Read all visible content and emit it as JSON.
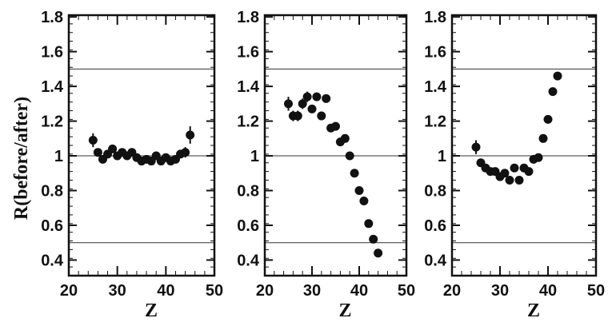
{
  "ylabel": "R(before/after)",
  "xlabel": "Z",
  "chart_data": [
    {
      "type": "scatter",
      "xlabel": "Z",
      "ylabel": "R(before/after)",
      "xlim": [
        20,
        50
      ],
      "ylim": [
        0.31,
        1.81
      ],
      "xticks": [
        20,
        30,
        40,
        50
      ],
      "xtick_labels": [
        "20",
        "30",
        "40",
        "50"
      ],
      "yticks": [
        0.4,
        0.6,
        0.8,
        1.0,
        1.2,
        1.4,
        1.6,
        1.8
      ],
      "ytick_labels": [
        "0.4",
        "0.6",
        "0.8",
        "1",
        "1.2",
        "1.4",
        "1.6",
        "1.8"
      ],
      "reference_lines": [
        0.5,
        1.0,
        1.5
      ],
      "series": [
        {
          "x": [
            25,
            26,
            27,
            28,
            29,
            30,
            31,
            32,
            33,
            34,
            35,
            36,
            37,
            38,
            39,
            40,
            41,
            42,
            43,
            44,
            45
          ],
          "y": [
            1.09,
            1.02,
            0.98,
            1.01,
            1.04,
            1.0,
            1.02,
            1.0,
            1.02,
            0.99,
            0.97,
            0.98,
            0.97,
            1.0,
            0.97,
            0.99,
            0.97,
            0.98,
            1.01,
            1.02,
            1.12
          ],
          "err": [
            0.04,
            0.02,
            0.02,
            0.02,
            0.02,
            0.02,
            0.02,
            0.02,
            0.02,
            0.02,
            0.02,
            0.02,
            0.02,
            0.02,
            0.02,
            0.02,
            0.02,
            0.02,
            0.02,
            0.03,
            0.05
          ]
        }
      ]
    },
    {
      "type": "scatter",
      "xlabel": "Z",
      "xlim": [
        20,
        50
      ],
      "ylim": [
        0.31,
        1.81
      ],
      "xticks": [
        20,
        30,
        40,
        50
      ],
      "xtick_labels": [
        "20",
        "30",
        "40",
        "50"
      ],
      "yticks": [
        0.4,
        0.6,
        0.8,
        1.0,
        1.2,
        1.4,
        1.6,
        1.8
      ],
      "ytick_labels": [
        "0.4",
        "0.6",
        "0.8",
        "1",
        "1.2",
        "1.4",
        "1.6",
        "1.8"
      ],
      "reference_lines": [
        0.5,
        1.0,
        1.5
      ],
      "series": [
        {
          "x": [
            25,
            26,
            27,
            28,
            29,
            30,
            31,
            32,
            33,
            34,
            35,
            36,
            37,
            38,
            39,
            40,
            41,
            42,
            43,
            44
          ],
          "y": [
            1.3,
            1.23,
            1.23,
            1.3,
            1.34,
            1.27,
            1.34,
            1.23,
            1.33,
            1.16,
            1.17,
            1.08,
            1.1,
            1.0,
            0.9,
            0.8,
            0.74,
            0.61,
            0.52,
            0.44
          ],
          "err": [
            0.04,
            0.03,
            0.03,
            0.03,
            0.03,
            0.02,
            0.02,
            0.02,
            0.02,
            0.02,
            0.02,
            0.02,
            0.02,
            0.02,
            0.02,
            0.02,
            0.02,
            0.02,
            0.02,
            0.02
          ]
        }
      ]
    },
    {
      "type": "scatter",
      "xlabel": "Z",
      "xlim": [
        20,
        50
      ],
      "ylim": [
        0.31,
        1.81
      ],
      "xticks": [
        20,
        30,
        40,
        50
      ],
      "xtick_labels": [
        "20",
        "30",
        "40",
        "50"
      ],
      "yticks": [
        0.4,
        0.6,
        0.8,
        1.0,
        1.2,
        1.4,
        1.6,
        1.8
      ],
      "ytick_labels": [
        "0.4",
        "0.6",
        "0.8",
        "1",
        "1.2",
        "1.4",
        "1.6",
        "1.8"
      ],
      "reference_lines": [
        0.5,
        1.0,
        1.5
      ],
      "series": [
        {
          "x": [
            25,
            26,
            27,
            28,
            29,
            30,
            31,
            32,
            33,
            34,
            35,
            36,
            37,
            38,
            39,
            40,
            41,
            42
          ],
          "y": [
            1.05,
            0.96,
            0.93,
            0.91,
            0.91,
            0.88,
            0.9,
            0.86,
            0.93,
            0.86,
            0.93,
            0.91,
            0.98,
            0.99,
            1.1,
            1.21,
            1.37,
            1.46
          ],
          "err": [
            0.04,
            0.02,
            0.02,
            0.02,
            0.02,
            0.02,
            0.02,
            0.02,
            0.02,
            0.02,
            0.02,
            0.02,
            0.02,
            0.02,
            0.02,
            0.02,
            0.02,
            0.02
          ]
        }
      ]
    }
  ]
}
